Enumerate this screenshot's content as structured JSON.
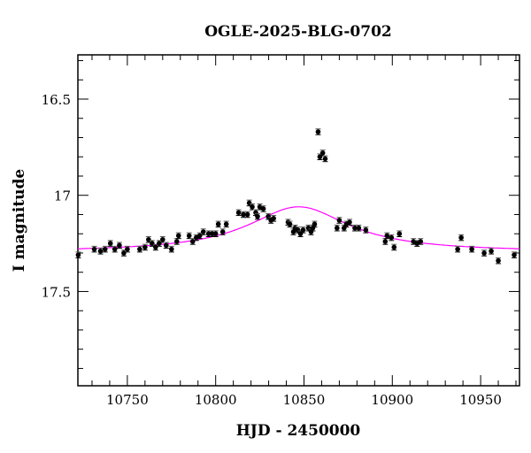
{
  "chart_data": {
    "type": "scatter",
    "title": "OGLE-2025-BLG-0702",
    "xlabel": "HJD - 2450000",
    "ylabel": "I magnitude",
    "xlim": [
      10722,
      10972
    ],
    "ylim": [
      16.27,
      17.99
    ],
    "y_inverted": true,
    "xticks": [
      10750,
      10800,
      10850,
      10900,
      10950
    ],
    "xtick_labels": [
      "10750",
      "10800",
      "10850",
      "10900",
      "10950"
    ],
    "yticks": [
      16.5,
      17,
      17.5
    ],
    "ytick_labels": [
      "16.5",
      "17",
      "17.5"
    ],
    "grid": false,
    "colors": {
      "points": "#000000",
      "errorbars": "#555555",
      "model": "#ff00ff"
    },
    "series": [
      {
        "name": "data",
        "error": 0.015,
        "points": [
          [
            10722.2,
            17.31
          ],
          [
            10731.3,
            17.28
          ],
          [
            10734.8,
            17.29
          ],
          [
            10737.4,
            17.28
          ],
          [
            10740.4,
            17.25
          ],
          [
            10742.9,
            17.28
          ],
          [
            10745.5,
            17.26
          ],
          [
            10748,
            17.3
          ],
          [
            10750,
            17.28
          ],
          [
            10757,
            17.28
          ],
          [
            10760,
            17.27
          ],
          [
            10762,
            17.23
          ],
          [
            10764,
            17.25
          ],
          [
            10766,
            17.27
          ],
          [
            10768,
            17.25
          ],
          [
            10770,
            17.23
          ],
          [
            10772,
            17.26
          ],
          [
            10775,
            17.28
          ],
          [
            10778,
            17.24
          ],
          [
            10779,
            17.21
          ],
          [
            10785,
            17.21
          ],
          [
            10787,
            17.24
          ],
          [
            10789,
            17.22
          ],
          [
            10791,
            17.21
          ],
          [
            10793,
            17.19
          ],
          [
            10796,
            17.2
          ],
          [
            10798,
            17.2
          ],
          [
            10800,
            17.2
          ],
          [
            10801.5,
            17.15
          ],
          [
            10804,
            17.19
          ],
          [
            10806,
            17.15
          ],
          [
            10813,
            17.09
          ],
          [
            10815.7,
            17.1
          ],
          [
            10818,
            17.1
          ],
          [
            10819,
            17.04
          ],
          [
            10820.7,
            17.06
          ],
          [
            10822.7,
            17.09
          ],
          [
            10823.7,
            17.11
          ],
          [
            10825,
            17.06
          ],
          [
            10827,
            17.07
          ],
          [
            10829.8,
            17.11
          ],
          [
            10831.3,
            17.13
          ],
          [
            10832.8,
            17.12
          ],
          [
            10841,
            17.14
          ],
          [
            10842,
            17.15
          ],
          [
            10844,
            17.19
          ],
          [
            10845,
            17.17
          ],
          [
            10846.5,
            17.18
          ],
          [
            10848,
            17.2
          ],
          [
            10849.5,
            17.18
          ],
          [
            10852.5,
            17.17
          ],
          [
            10854,
            17.19
          ],
          [
            10855,
            17.17
          ],
          [
            10856,
            17.15
          ],
          [
            10858,
            16.67
          ],
          [
            10859,
            16.8
          ],
          [
            10860.6,
            16.78
          ],
          [
            10862,
            16.81
          ],
          [
            10868.7,
            17.17
          ],
          [
            10870,
            17.13
          ],
          [
            10872.7,
            17.17
          ],
          [
            10874,
            17.15
          ],
          [
            10875.8,
            17.14
          ],
          [
            10878.8,
            17.17
          ],
          [
            10881,
            17.17
          ],
          [
            10885,
            17.18
          ],
          [
            10896,
            17.24
          ],
          [
            10897,
            17.21
          ],
          [
            10899.5,
            17.22
          ],
          [
            10901,
            17.27
          ],
          [
            10904,
            17.2
          ],
          [
            10912,
            17.24
          ],
          [
            10914,
            17.25
          ],
          [
            10916,
            17.24
          ],
          [
            10937,
            17.28
          ],
          [
            10939,
            17.22
          ],
          [
            10945,
            17.28
          ],
          [
            10952,
            17.3
          ],
          [
            10956,
            17.29
          ],
          [
            10960,
            17.34
          ],
          [
            10969,
            17.31
          ]
        ]
      },
      {
        "name": "model",
        "t0": 10847,
        "baseline": 17.295,
        "amplitude": 0.235,
        "width": 35
      }
    ]
  }
}
